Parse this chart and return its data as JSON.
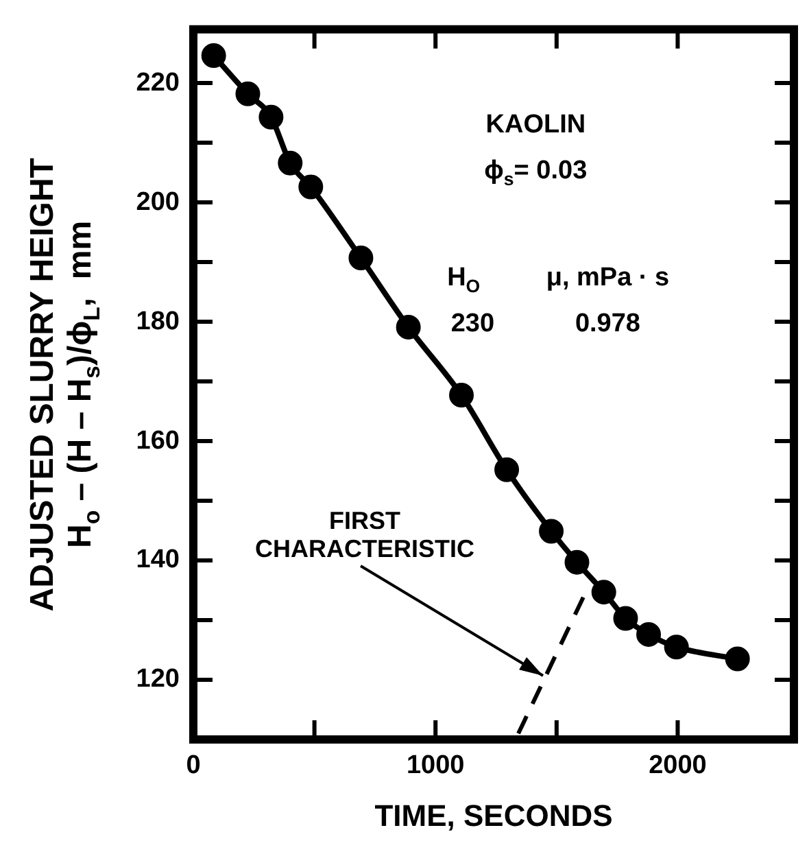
{
  "chart_data": {
    "type": "line",
    "xlabel": "TIME, SECONDS",
    "ylabel": "ADJUSTED SLURRY HEIGHT\nH$_{o}$ – (H – H$_{s}$)/ϕ$_{L}$,  mm",
    "xlim": [
      0,
      2480
    ],
    "ylim": [
      110,
      229
    ],
    "xticks": [
      0,
      {
        "value": 500,
        "label": null
      },
      1000,
      {
        "value": 1500,
        "label": null
      },
      2000
    ],
    "yticks": [
      120,
      {
        "value": 130,
        "label": null
      },
      140,
      {
        "value": 150,
        "label": null
      },
      160,
      {
        "value": 170,
        "label": null
      },
      180,
      {
        "value": 190,
        "label": null
      },
      200,
      {
        "value": 210,
        "label": null
      },
      220
    ],
    "grid": false,
    "legend": false,
    "series": [
      {
        "type": "line",
        "marker": "circle",
        "line_style": "solid",
        "color": "#000000",
        "x": [
          84,
          225,
          321,
          400,
          485,
          692,
          888,
          1107,
          1294,
          1478,
          1584,
          1695,
          1785,
          1880,
          1995,
          2247
        ],
        "values": [
          224.6,
          218.2,
          214.3,
          206.6,
          202.6,
          190.7,
          179.1,
          167.7,
          155.2,
          144.9,
          139.7,
          134.7,
          130.3,
          127.6,
          125.5,
          123.5
        ]
      },
      {
        "type": "line",
        "marker": "none",
        "line_style": "dashed",
        "color": "#000000",
        "x": [
          1342,
          1624
        ],
        "values": [
          111,
          135
        ]
      }
    ],
    "annotations": [
      "KAOLIN",
      "ϕ$_{s}$= 0.03",
      "H$_{O}$",
      "μ, mPa · s",
      "230",
      "0.978",
      {
        "text": "FIRST\nCHARACTERISTIC",
        "x": 1444,
        "y": 120.7
      }
    ]
  }
}
